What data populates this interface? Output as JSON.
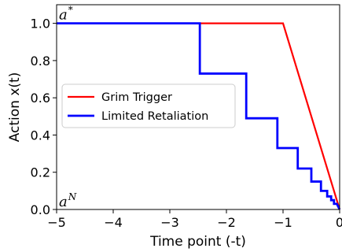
{
  "chart_data": {
    "type": "line",
    "title": "",
    "xlabel": "Time point (-t)",
    "ylabel": "Action x(t)",
    "xlim": [
      -5,
      0
    ],
    "ylim": [
      0,
      1.1
    ],
    "xticks": [
      -5,
      -4,
      -3,
      -2,
      -1,
      0
    ],
    "xtick_labels": [
      "−5",
      "−4",
      "−3",
      "−2",
      "−1",
      "0"
    ],
    "yticks": [
      0.0,
      0.2,
      0.4,
      0.6,
      0.8,
      1.0
    ],
    "ytick_labels": [
      "0.0",
      "0.2",
      "0.4",
      "0.6",
      "0.8",
      "1.0"
    ],
    "grid": false,
    "legend_position": "center-left",
    "series": [
      {
        "name": "Grim Trigger",
        "color": "#ff0000",
        "step": false,
        "x": [
          -5,
          -1.0,
          0
        ],
        "y": [
          1.0,
          1.0,
          0.0
        ]
      },
      {
        "name": "Limited Retaliation",
        "color": "#0000ff",
        "step": true,
        "x": [
          -5,
          -2.47,
          -2.47,
          -1.65,
          -1.65,
          -1.1,
          -1.1,
          -0.74,
          -0.74,
          -0.5,
          -0.5,
          -0.33,
          -0.33,
          -0.22,
          -0.22,
          -0.15,
          -0.15,
          -0.1,
          -0.1,
          -0.05,
          0
        ],
        "y": [
          1.0,
          1.0,
          0.73,
          0.73,
          0.49,
          0.49,
          0.33,
          0.33,
          0.22,
          0.22,
          0.15,
          0.15,
          0.1,
          0.1,
          0.07,
          0.07,
          0.05,
          0.05,
          0.03,
          0.03,
          0.0
        ]
      }
    ],
    "annotations": [
      {
        "base": "a",
        "sup": "*",
        "x": -5,
        "y": 1.0
      },
      {
        "base": "a",
        "sup": "N",
        "x": -5,
        "y": 0.0
      }
    ]
  }
}
